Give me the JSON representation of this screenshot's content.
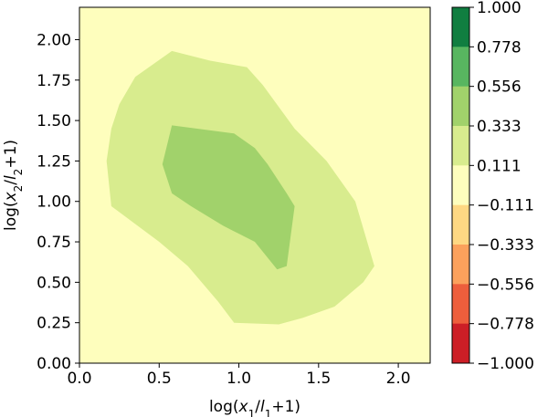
{
  "chart_data": {
    "type": "contour",
    "xlabel_parts": [
      "log(",
      "x",
      "1",
      "/",
      "l",
      "1",
      "+1)"
    ],
    "ylabel_parts": [
      "log(",
      "x",
      "2",
      "/",
      "l",
      "2",
      "+1)"
    ],
    "xlim": [
      0.0,
      2.2
    ],
    "ylim": [
      0.0,
      2.2
    ],
    "xticks": [
      0.0,
      0.5,
      1.0,
      1.5,
      2.0
    ],
    "xtick_labels": [
      "0.0",
      "0.5",
      "1.0",
      "1.5",
      "2.0"
    ],
    "yticks": [
      0.0,
      0.25,
      0.5,
      0.75,
      1.0,
      1.25,
      1.5,
      1.75,
      2.0
    ],
    "ytick_labels": [
      "0.00",
      "0.25",
      "0.50",
      "0.75",
      "1.00",
      "1.25",
      "1.50",
      "1.75",
      "2.00"
    ],
    "background_level_color": "#fefebd",
    "levels": [
      {
        "name": "0.111 to 0.333",
        "color": "#d8ec8e",
        "points": [
          [
            0.2,
            0.97
          ],
          [
            0.17,
            1.25
          ],
          [
            0.2,
            1.45
          ],
          [
            0.25,
            1.6
          ],
          [
            0.35,
            1.77
          ],
          [
            0.58,
            1.93
          ],
          [
            0.82,
            1.87
          ],
          [
            1.05,
            1.83
          ],
          [
            1.15,
            1.72
          ],
          [
            1.35,
            1.45
          ],
          [
            1.55,
            1.25
          ],
          [
            1.73,
            1.0
          ],
          [
            1.85,
            0.6
          ],
          [
            1.78,
            0.5
          ],
          [
            1.6,
            0.35
          ],
          [
            1.4,
            0.28
          ],
          [
            1.25,
            0.24
          ],
          [
            0.97,
            0.25
          ],
          [
            0.87,
            0.38
          ],
          [
            0.68,
            0.6
          ],
          [
            0.5,
            0.75
          ]
        ]
      },
      {
        "name": "0.333 to 0.556",
        "color": "#a1d26b",
        "points": [
          [
            0.52,
            1.23
          ],
          [
            0.58,
            1.47
          ],
          [
            0.97,
            1.42
          ],
          [
            1.1,
            1.33
          ],
          [
            1.18,
            1.23
          ],
          [
            1.3,
            1.05
          ],
          [
            1.35,
            0.97
          ],
          [
            1.3,
            0.6
          ],
          [
            1.24,
            0.58
          ],
          [
            1.1,
            0.75
          ],
          [
            0.9,
            0.85
          ],
          [
            0.7,
            0.97
          ],
          [
            0.58,
            1.05
          ]
        ]
      }
    ],
    "colorbar": {
      "tick_labels": [
        "1.000",
        "0.778",
        "0.556",
        "0.333",
        "0.111",
        "−0.111",
        "−0.333",
        "−0.556",
        "−0.778",
        "−1.000"
      ],
      "segment_colors": [
        "#107e40",
        "#58b660",
        "#a1d26b",
        "#d8ec8e",
        "#fefebd",
        "#fed883",
        "#fba15c",
        "#ed5e3c",
        "#cc1e26"
      ]
    }
  }
}
